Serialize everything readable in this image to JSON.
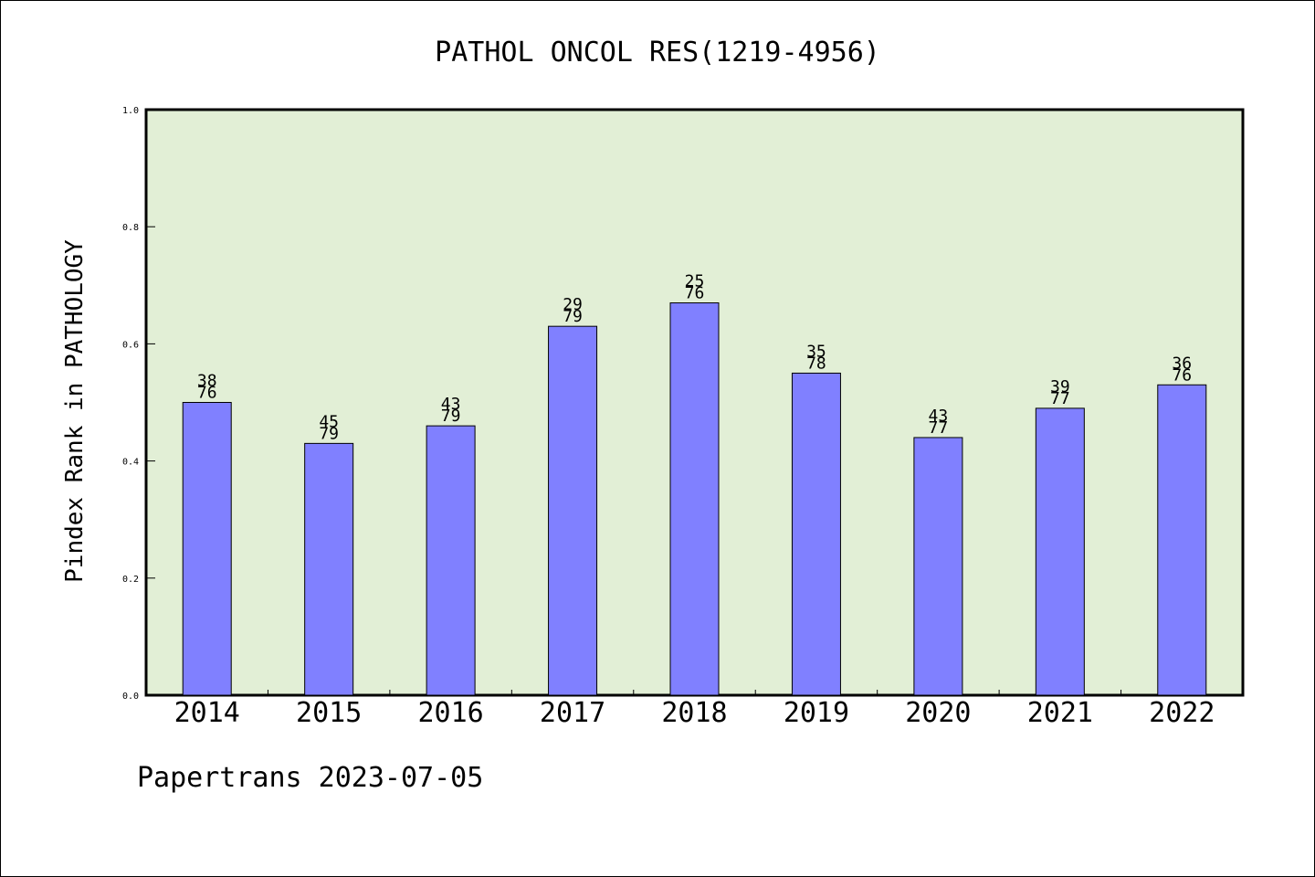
{
  "chart_data": {
    "type": "bar",
    "title": "PATHOL ONCOL RES(1219-4956)",
    "xlabel": "",
    "ylabel": "Pindex Rank in PATHOLOGY",
    "ylim": [
      0.0,
      1.0
    ],
    "yticks": [
      "0.0",
      "0.2",
      "0.4",
      "0.6",
      "0.8",
      "1.0"
    ],
    "categories": [
      "2014",
      "2015",
      "2016",
      "2017",
      "2018",
      "2019",
      "2020",
      "2021",
      "2022"
    ],
    "values": [
      0.5,
      0.43,
      0.46,
      0.63,
      0.67,
      0.55,
      0.44,
      0.49,
      0.53
    ],
    "label_top": [
      "38",
      "45",
      "43",
      "29",
      "25",
      "35",
      "43",
      "39",
      "36"
    ],
    "label_bottom": [
      "76",
      "79",
      "79",
      "79",
      "76",
      "78",
      "77",
      "77",
      "76"
    ],
    "grid": false,
    "legend": "none"
  },
  "colors": {
    "plot_background": "#e2efd6",
    "bar_fill": "#8080ff",
    "bar_stroke": "#000000",
    "axis": "#000000"
  },
  "footer": {
    "text": "Papertrans 2023-07-05"
  }
}
